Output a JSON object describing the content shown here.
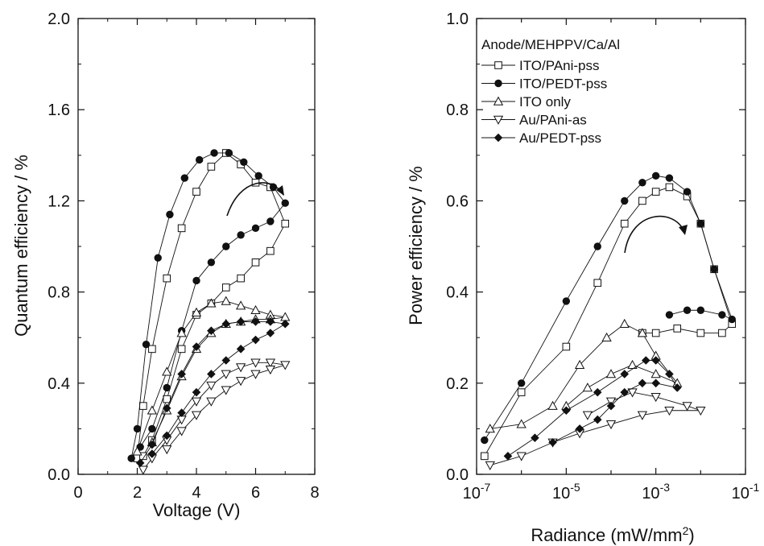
{
  "figure": {
    "left_panel": {
      "xlabel": "Voltage (V)",
      "ylabel": "Quantum efficiency / %",
      "xticks": [
        "0",
        "2",
        "4",
        "6",
        "8"
      ],
      "yticks": [
        "0.0",
        "0.4",
        "0.8",
        "1.2",
        "1.6",
        "2.0"
      ]
    },
    "right_panel": {
      "xlabel": "Radiance (mW/mm",
      "xlabel_sup": "2",
      "xlabel_close": ")",
      "ylabel": "Power efficiency / %",
      "xticks": [
        {
          "base": "10",
          "exp": "-7"
        },
        {
          "base": "10",
          "exp": "-5"
        },
        {
          "base": "10",
          "exp": "-3"
        },
        {
          "base": "10",
          "exp": "-1"
        }
      ],
      "yticks": [
        "0.0",
        "0.2",
        "0.4",
        "0.6",
        "0.8",
        "1.0"
      ],
      "legend_title": "Anode/MEHPPV/Ca/Al"
    }
  },
  "chart_data": [
    {
      "type": "scatter",
      "xlabel": "Voltage (V)",
      "ylabel": "Quantum efficiency / %",
      "xlim": [
        0,
        8
      ],
      "ylim": [
        0,
        2.0
      ],
      "series": [
        {
          "name": "ITO/PAni-pss",
          "marker": "square-open",
          "x": [
            2.0,
            2.2,
            2.5,
            3.0,
            3.5,
            4.0,
            4.5,
            5.0,
            5.5,
            6.0,
            6.5,
            7.0,
            6.5,
            6.0,
            5.5,
            5.0,
            4.5,
            4.0,
            3.5,
            3.0,
            2.5,
            2.2
          ],
          "y": [
            0.07,
            0.3,
            0.55,
            0.86,
            1.08,
            1.24,
            1.35,
            1.41,
            1.36,
            1.28,
            1.26,
            1.1,
            0.98,
            0.93,
            0.86,
            0.82,
            0.75,
            0.7,
            0.55,
            0.33,
            0.15,
            0.08
          ]
        },
        {
          "name": "ITO/PEDT-pss",
          "marker": "circle-filled",
          "x": [
            1.8,
            2.0,
            2.3,
            2.7,
            3.1,
            3.6,
            4.1,
            4.6,
            5.1,
            5.6,
            6.1,
            6.6,
            7.0,
            6.5,
            6.0,
            5.5,
            5.0,
            4.5,
            4.0,
            3.5,
            3.0,
            2.5,
            2.1
          ],
          "y": [
            0.07,
            0.2,
            0.57,
            0.95,
            1.14,
            1.3,
            1.38,
            1.41,
            1.41,
            1.37,
            1.31,
            1.26,
            1.19,
            1.11,
            1.08,
            1.05,
            1.0,
            0.93,
            0.85,
            0.63,
            0.38,
            0.2,
            0.12
          ]
        },
        {
          "name": "ITO only",
          "marker": "triangle-up-open",
          "x": [
            2.0,
            2.5,
            3.0,
            3.5,
            4.0,
            4.5,
            5.0,
            5.5,
            6.0,
            6.5,
            7.0,
            6.5,
            6.0,
            5.5,
            5.0,
            4.5,
            4.0,
            3.5,
            3.0,
            2.5
          ],
          "y": [
            0.1,
            0.28,
            0.45,
            0.62,
            0.71,
            0.75,
            0.76,
            0.74,
            0.72,
            0.7,
            0.69,
            0.68,
            0.68,
            0.67,
            0.66,
            0.62,
            0.55,
            0.43,
            0.28,
            0.14
          ]
        },
        {
          "name": "Au/PAni-as",
          "marker": "triangle-down-open",
          "x": [
            2.2,
            2.5,
            3.0,
            3.5,
            4.0,
            4.5,
            5.0,
            5.5,
            6.0,
            6.5,
            7.0,
            6.5,
            6.0,
            5.5,
            5.0,
            4.5,
            4.0,
            3.5,
            3.0
          ],
          "y": [
            0.02,
            0.07,
            0.15,
            0.24,
            0.32,
            0.39,
            0.44,
            0.47,
            0.49,
            0.49,
            0.48,
            0.46,
            0.44,
            0.41,
            0.37,
            0.32,
            0.26,
            0.19,
            0.11
          ]
        },
        {
          "name": "Au/PEDT-pss",
          "marker": "diamond-filled",
          "x": [
            2.1,
            2.5,
            3.0,
            3.5,
            4.0,
            4.5,
            5.0,
            5.5,
            6.0,
            6.5,
            7.0,
            6.5,
            6.0,
            5.5,
            5.0,
            4.5,
            4.0,
            3.5,
            3.0,
            2.5
          ],
          "y": [
            0.05,
            0.13,
            0.29,
            0.44,
            0.56,
            0.63,
            0.66,
            0.67,
            0.67,
            0.67,
            0.66,
            0.62,
            0.59,
            0.55,
            0.5,
            0.44,
            0.36,
            0.27,
            0.17,
            0.09
          ]
        }
      ],
      "annotations": [
        {
          "type": "curved-arrow",
          "direction": "clockwise"
        }
      ]
    },
    {
      "type": "scatter",
      "xlabel": "Radiance (mW/mm2)",
      "ylabel": "Power efficiency / %",
      "xscale": "log",
      "xlim": [
        1e-07,
        0.1
      ],
      "ylim": [
        0,
        1.0
      ],
      "legend": {
        "title": "Anode/MEHPPV/Ca/Al",
        "placement": "top-left"
      },
      "series": [
        {
          "name": "ITO/PAni-pss",
          "marker": "square-open",
          "x": [
            1.5e-07,
            1e-06,
            1e-05,
            5e-05,
            0.0002,
            0.0005,
            0.001,
            0.002,
            0.005,
            0.01,
            0.02,
            0.05,
            0.03,
            0.01,
            0.003,
            0.001,
            0.0005
          ],
          "y": [
            0.04,
            0.18,
            0.28,
            0.42,
            0.55,
            0.6,
            0.62,
            0.63,
            0.61,
            0.55,
            0.45,
            0.33,
            0.31,
            0.31,
            0.32,
            0.31,
            0.31
          ]
        },
        {
          "name": "ITO/PEDT-pss",
          "marker": "circle-filled",
          "x": [
            1.5e-07,
            1e-06,
            1e-05,
            5e-05,
            0.0002,
            0.0005,
            0.001,
            0.002,
            0.005,
            0.01,
            0.02,
            0.05,
            0.03,
            0.01,
            0.005,
            0.002
          ],
          "y": [
            0.075,
            0.2,
            0.38,
            0.5,
            0.6,
            0.64,
            0.655,
            0.65,
            0.62,
            0.55,
            0.45,
            0.34,
            0.35,
            0.36,
            0.36,
            0.35
          ]
        },
        {
          "name": "ITO only",
          "marker": "triangle-up-open",
          "x": [
            2e-07,
            1e-06,
            5e-06,
            2e-05,
            8e-05,
            0.0002,
            0.0005,
            0.001,
            0.003,
            0.001,
            0.0003,
            0.0001,
            3e-05,
            1e-05
          ],
          "y": [
            0.1,
            0.11,
            0.15,
            0.24,
            0.3,
            0.33,
            0.31,
            0.26,
            0.2,
            0.22,
            0.24,
            0.22,
            0.19,
            0.15
          ]
        },
        {
          "name": "Au/PAni-as",
          "marker": "triangle-down-open",
          "x": [
            2e-07,
            1e-06,
            5e-06,
            2e-05,
            0.0001,
            0.0005,
            0.002,
            0.01,
            0.005,
            0.001,
            0.0003,
            0.0001,
            3e-05
          ],
          "y": [
            0.02,
            0.04,
            0.07,
            0.09,
            0.11,
            0.13,
            0.14,
            0.14,
            0.15,
            0.17,
            0.18,
            0.16,
            0.13
          ]
        },
        {
          "name": "Au/PEDT-pss",
          "marker": "diamond-filled",
          "x": [
            5e-07,
            2e-06,
            1e-05,
            5e-05,
            0.0002,
            0.0006,
            0.001,
            0.002,
            0.003,
            0.001,
            0.0005,
            0.0002,
            0.0001,
            5e-05,
            2e-05,
            5e-06
          ],
          "y": [
            0.04,
            0.08,
            0.14,
            0.18,
            0.22,
            0.25,
            0.25,
            0.22,
            0.19,
            0.2,
            0.2,
            0.18,
            0.15,
            0.12,
            0.1,
            0.07
          ]
        }
      ],
      "annotations": [
        {
          "type": "curved-arrow",
          "direction": "clockwise"
        }
      ]
    }
  ]
}
